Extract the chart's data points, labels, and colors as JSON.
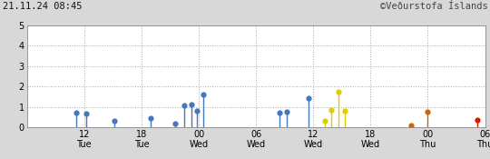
{
  "title_left": "21.11.24 08:45",
  "title_right": "©Veðurstofa Íslands",
  "xlim": [
    0,
    48
  ],
  "ylim": [
    0,
    5
  ],
  "yticks": [
    0,
    1,
    2,
    3,
    4,
    5
  ],
  "xtick_positions": [
    6,
    12,
    18,
    24,
    30,
    36,
    42,
    48
  ],
  "xtick_labels": [
    "12\nTue",
    "18\nTue",
    "00\nWed",
    "06\nWed",
    "12\nWed",
    "18\nWed",
    "00\nThu",
    "06\nThu"
  ],
  "background_color": "#d8d8d8",
  "plot_bg_color": "#ffffff",
  "grid_color": "#aaaaaa",
  "earthquakes": [
    {
      "t": 5.2,
      "m": 0.7,
      "color": "#4477bb"
    },
    {
      "t": 6.2,
      "m": 0.65,
      "color": "#4477bb"
    },
    {
      "t": 9.2,
      "m": 0.3,
      "color": "#4477bb"
    },
    {
      "t": 13.0,
      "m": 0.45,
      "color": "#4477bb"
    },
    {
      "t": 15.5,
      "m": 0.2,
      "color": "#4477bb"
    },
    {
      "t": 16.5,
      "m": 1.05,
      "color": "#4477bb"
    },
    {
      "t": 17.2,
      "m": 1.1,
      "color": "#4477bb"
    },
    {
      "t": 17.8,
      "m": 0.8,
      "color": "#4477bb"
    },
    {
      "t": 18.5,
      "m": 1.6,
      "color": "#4477bb"
    },
    {
      "t": 26.5,
      "m": 0.7,
      "color": "#4477bb"
    },
    {
      "t": 27.2,
      "m": 0.75,
      "color": "#4477bb"
    },
    {
      "t": 29.5,
      "m": 1.45,
      "color": "#4477bb"
    },
    {
      "t": 31.2,
      "m": 0.3,
      "color": "#ddcc00"
    },
    {
      "t": 31.9,
      "m": 0.85,
      "color": "#ddcc00"
    },
    {
      "t": 32.6,
      "m": 1.75,
      "color": "#ddcc00"
    },
    {
      "t": 33.3,
      "m": 0.8,
      "color": "#ddcc00"
    },
    {
      "t": 40.2,
      "m": 0.1,
      "color": "#cc6600"
    },
    {
      "t": 42.0,
      "m": 0.75,
      "color": "#cc6600"
    },
    {
      "t": 47.2,
      "m": 0.35,
      "color": "#cc2200"
    }
  ]
}
